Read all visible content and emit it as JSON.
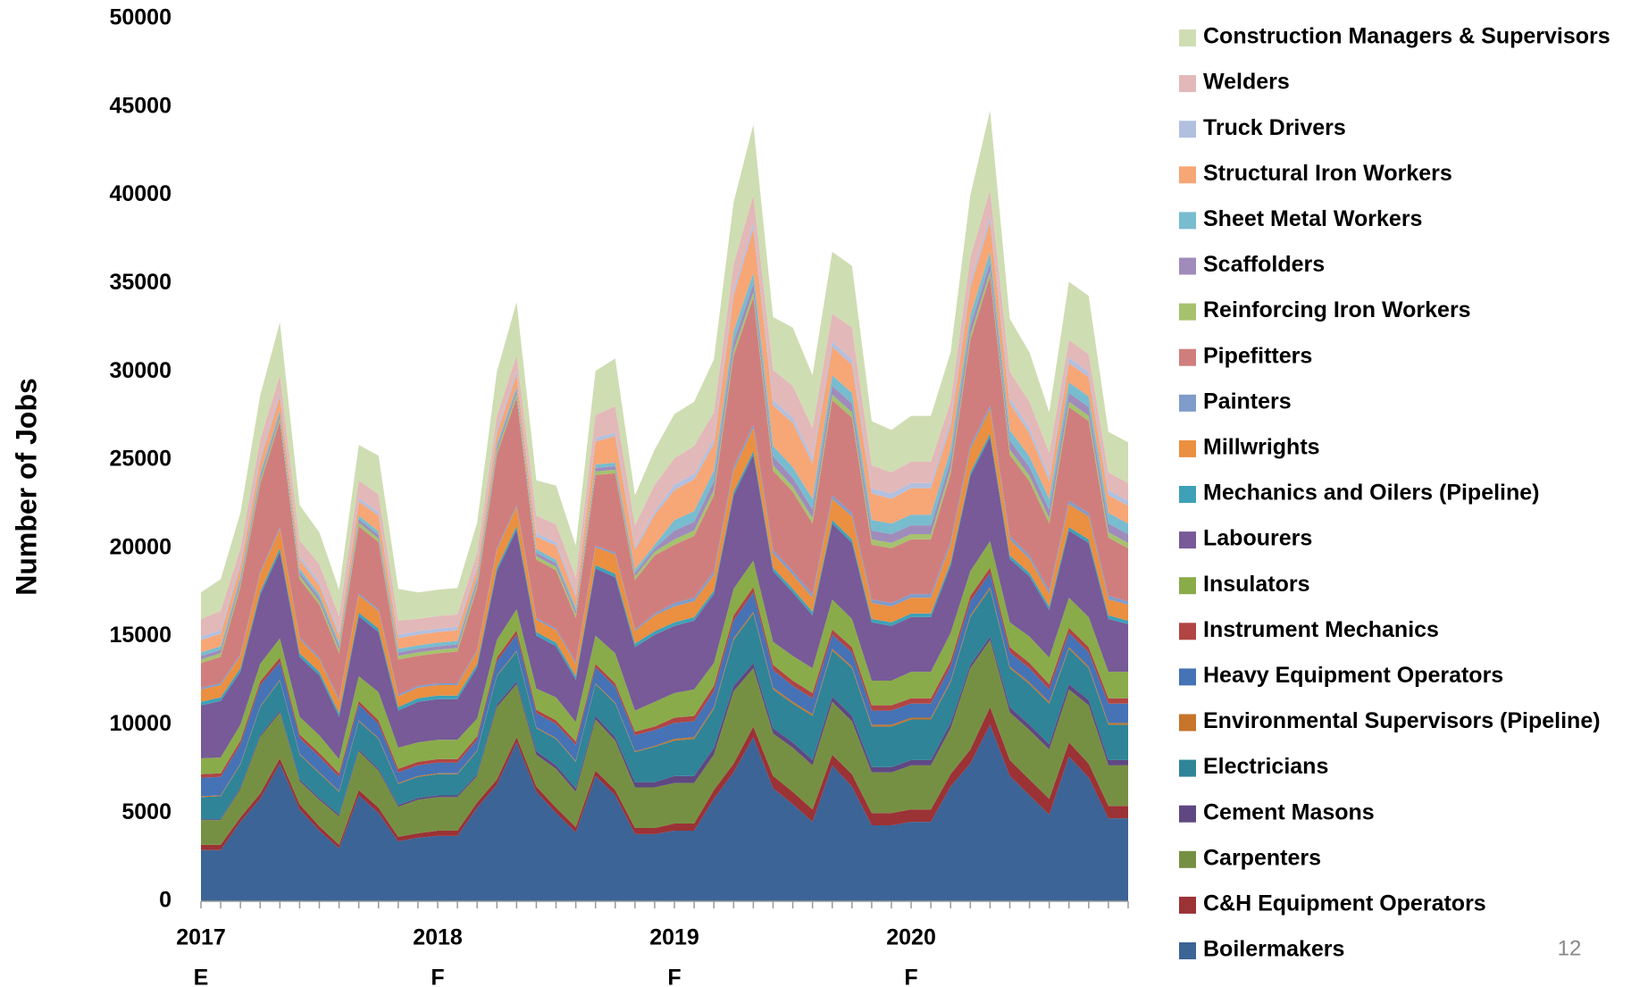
{
  "chart_data": {
    "type": "area",
    "stacked": true,
    "y_label": "Number of Jobs",
    "page_number": "12",
    "legend_order": "reverse",
    "categories": [
      "2017",
      null,
      null,
      null,
      null,
      null,
      null,
      null,
      null,
      null,
      null,
      null,
      "2018",
      null,
      null,
      null,
      null,
      null,
      null,
      null,
      null,
      null,
      null,
      null,
      "2019",
      null,
      null,
      null,
      null,
      null,
      null,
      null,
      null,
      null,
      null,
      null,
      "2020",
      null,
      null,
      null,
      null,
      null,
      null,
      null,
      null,
      null,
      null,
      null
    ],
    "category_notes": [
      "E",
      null,
      null,
      null,
      null,
      null,
      null,
      null,
      null,
      null,
      null,
      null,
      "F",
      null,
      null,
      null,
      null,
      null,
      null,
      null,
      null,
      null,
      null,
      null,
      "F",
      null,
      null,
      null,
      null,
      null,
      null,
      null,
      null,
      null,
      null,
      null,
      "F",
      null,
      null,
      null,
      null,
      null,
      null,
      null,
      null,
      null,
      null,
      null
    ],
    "ylim": [
      0,
      50000
    ],
    "yticks": [
      0,
      5000,
      10000,
      15000,
      20000,
      25000,
      30000,
      35000,
      40000,
      45000,
      50000
    ],
    "series": [
      {
        "name": "Boilermakers",
        "color": "#3c6496",
        "values": [
          2900,
          2900,
          4500,
          5800,
          7800,
          5200,
          4000,
          3000,
          6000,
          5000,
          3400,
          3600,
          3700,
          3700,
          5300,
          6600,
          9000,
          6200,
          5000,
          3900,
          7100,
          6000,
          3800,
          3800,
          4000,
          4000,
          5800,
          7300,
          9300,
          6400,
          5500,
          4500,
          7700,
          6500,
          4300,
          4300,
          4500,
          4500,
          6500,
          7800,
          10000,
          7100,
          6000,
          4900,
          8200,
          7000,
          4700,
          4700
        ]
      },
      {
        "name": "C&H Equipment Operators",
        "color": "#9b3236",
        "values": [
          300,
          300,
          250,
          300,
          300,
          300,
          250,
          200,
          300,
          300,
          250,
          250,
          300,
          300,
          300,
          300,
          300,
          300,
          300,
          300,
          300,
          300,
          350,
          350,
          400,
          400,
          500,
          500,
          600,
          700,
          700,
          700,
          600,
          700,
          700,
          700,
          700,
          700,
          700,
          800,
          1000,
          900,
          900,
          900,
          800,
          800,
          700,
          700
        ]
      },
      {
        "name": "Carpenters",
        "color": "#769043",
        "values": [
          1400,
          1400,
          1600,
          3200,
          2600,
          1300,
          1500,
          1600,
          2200,
          2100,
          1700,
          1900,
          1900,
          1900,
          1500,
          4100,
          3000,
          1800,
          2200,
          2000,
          2900,
          2800,
          2300,
          2300,
          2300,
          2300,
          2000,
          4100,
          3300,
          2400,
          2500,
          2500,
          3000,
          3000,
          2300,
          2300,
          2500,
          2500,
          2600,
          4600,
          3800,
          2700,
          2800,
          2800,
          3000,
          3300,
          2300,
          2300
        ]
      },
      {
        "name": "Cement Masons",
        "color": "#5f4882",
        "values": [
          50,
          50,
          100,
          100,
          100,
          100,
          100,
          100,
          100,
          100,
          100,
          100,
          100,
          100,
          100,
          150,
          150,
          200,
          200,
          200,
          200,
          200,
          300,
          300,
          400,
          400,
          400,
          300,
          300,
          300,
          300,
          300,
          300,
          300,
          300,
          300,
          300,
          300,
          300,
          200,
          200,
          300,
          300,
          300,
          300,
          300,
          300,
          300
        ]
      },
      {
        "name": "Electricians",
        "color": "#2f8497",
        "values": [
          1250,
          1300,
          1300,
          1600,
          1700,
          1400,
          1400,
          1300,
          1600,
          1700,
          1200,
          1200,
          1200,
          1200,
          1300,
          1600,
          1700,
          1300,
          1500,
          1500,
          1800,
          1900,
          1700,
          2000,
          2000,
          2100,
          2200,
          2600,
          2800,
          2200,
          2200,
          2500,
          2600,
          2700,
          2300,
          2300,
          2300,
          2300,
          2300,
          2700,
          2700,
          2200,
          2300,
          2300,
          2000,
          1800,
          2000,
          2000
        ]
      },
      {
        "name": "Environmental Supervisors (Pipeline)",
        "color": "#c6752b",
        "values": [
          50,
          50,
          50,
          50,
          50,
          50,
          50,
          50,
          50,
          50,
          50,
          50,
          50,
          50,
          50,
          50,
          50,
          50,
          50,
          50,
          50,
          50,
          50,
          50,
          100,
          100,
          100,
          100,
          100,
          100,
          100,
          100,
          100,
          100,
          100,
          100,
          100,
          100,
          100,
          100,
          100,
          100,
          100,
          100,
          100,
          100,
          100,
          100
        ]
      },
      {
        "name": "Heavy Equipment Operators",
        "color": "#4573b5",
        "values": [
          1050,
          1050,
          1100,
          1200,
          1000,
          900,
          900,
          800,
          900,
          800,
          600,
          600,
          600,
          600,
          600,
          800,
          900,
          800,
          800,
          900,
          900,
          900,
          900,
          900,
          900,
          900,
          900,
          1000,
          1100,
          1000,
          900,
          900,
          800,
          800,
          800,
          800,
          800,
          800,
          800,
          800,
          800,
          800,
          800,
          700,
          800,
          800,
          1100,
          1100
        ]
      },
      {
        "name": "Instrument Mechanics",
        "color": "#b04544",
        "values": [
          200,
          200,
          200,
          200,
          250,
          200,
          200,
          200,
          200,
          200,
          200,
          200,
          200,
          200,
          200,
          200,
          250,
          200,
          200,
          200,
          200,
          200,
          200,
          200,
          300,
          300,
          300,
          300,
          300,
          300,
          300,
          300,
          300,
          300,
          300,
          300,
          300,
          300,
          300,
          300,
          300,
          300,
          300,
          300,
          300,
          300,
          300,
          300
        ]
      },
      {
        "name": "Insulators",
        "color": "#8aab4a",
        "values": [
          900,
          900,
          900,
          1000,
          1100,
          1000,
          1000,
          800,
          1400,
          1600,
          1200,
          1100,
          1100,
          1100,
          1000,
          1000,
          1200,
          1200,
          1300,
          1100,
          1600,
          1700,
          1200,
          1400,
          1400,
          1500,
          1300,
          1500,
          1500,
          1300,
          1400,
          1400,
          1700,
          1600,
          1400,
          1400,
          1500,
          1500,
          1600,
          1400,
          1500,
          1400,
          1500,
          1500,
          1700,
          1700,
          1500,
          1500
        ]
      },
      {
        "name": "Labourers",
        "color": "#775a97",
        "values": [
          3000,
          3200,
          3000,
          3900,
          4900,
          3400,
          3400,
          2400,
          3400,
          3400,
          2100,
          2300,
          2300,
          2300,
          2900,
          3900,
          4500,
          3000,
          2900,
          2400,
          3800,
          4300,
          3600,
          3800,
          3800,
          3900,
          3900,
          5300,
          6000,
          4000,
          3600,
          3000,
          4300,
          4300,
          3300,
          3100,
          3100,
          3100,
          3800,
          5400,
          5900,
          3600,
          3400,
          2700,
          3800,
          4200,
          3000,
          2700
        ]
      },
      {
        "name": "Mechanics and Oilers (Pipeline)",
        "color": "#3ea1b8",
        "values": [
          200,
          200,
          200,
          200,
          200,
          200,
          200,
          200,
          200,
          200,
          200,
          200,
          200,
          200,
          200,
          200,
          200,
          200,
          200,
          200,
          200,
          200,
          200,
          200,
          200,
          200,
          200,
          200,
          200,
          200,
          200,
          200,
          200,
          200,
          200,
          200,
          200,
          200,
          200,
          200,
          200,
          200,
          200,
          200,
          200,
          200,
          200,
          200
        ]
      },
      {
        "name": "Millwrights",
        "color": "#eb8f40",
        "values": [
          700,
          700,
          700,
          1000,
          1100,
          800,
          700,
          700,
          1000,
          1000,
          600,
          600,
          600,
          600,
          700,
          1000,
          1100,
          700,
          700,
          700,
          1000,
          1100,
          700,
          900,
          900,
          900,
          900,
          1200,
          1300,
          800,
          800,
          800,
          1200,
          1300,
          900,
          900,
          900,
          900,
          1000,
          1300,
          1400,
          900,
          800,
          700,
          1300,
          1300,
          900,
          900
        ]
      },
      {
        "name": "Painters",
        "color": "#7f9cca",
        "values": [
          100,
          100,
          100,
          100,
          100,
          100,
          100,
          100,
          100,
          100,
          100,
          100,
          100,
          100,
          100,
          100,
          100,
          100,
          100,
          100,
          100,
          100,
          100,
          100,
          200,
          200,
          200,
          200,
          200,
          200,
          200,
          200,
          200,
          200,
          200,
          200,
          200,
          200,
          200,
          200,
          200,
          200,
          200,
          200,
          200,
          200,
          200,
          200
        ]
      },
      {
        "name": "Pipefitters",
        "color": "#cf7e7d",
        "values": [
          1400,
          1500,
          3800,
          5000,
          6000,
          3300,
          3000,
          2600,
          3800,
          3800,
          2000,
          1700,
          1700,
          1800,
          3500,
          5300,
          6100,
          3300,
          3300,
          2500,
          4000,
          4500,
          2800,
          3300,
          3300,
          3500,
          4300,
          6300,
          7200,
          4500,
          4500,
          4000,
          5400,
          5400,
          3100,
          3100,
          3100,
          3100,
          3800,
          6000,
          7300,
          4600,
          4200,
          3800,
          5300,
          5200,
          3300,
          3000
        ]
      },
      {
        "name": "Reinforcing Iron Workers",
        "color": "#a6c26e",
        "values": [
          200,
          200,
          200,
          200,
          200,
          200,
          200,
          200,
          200,
          200,
          200,
          200,
          200,
          200,
          200,
          200,
          200,
          200,
          200,
          200,
          200,
          200,
          200,
          200,
          300,
          300,
          300,
          300,
          300,
          300,
          300,
          300,
          300,
          300,
          300,
          300,
          300,
          300,
          300,
          300,
          300,
          300,
          300,
          300,
          300,
          300,
          300,
          300
        ]
      },
      {
        "name": "Scaffolders",
        "color": "#9f8cbb",
        "values": [
          200,
          200,
          200,
          200,
          200,
          200,
          200,
          200,
          200,
          200,
          200,
          200,
          200,
          200,
          200,
          200,
          200,
          200,
          200,
          200,
          200,
          200,
          200,
          200,
          500,
          500,
          500,
          500,
          500,
          500,
          500,
          500,
          500,
          500,
          500,
          500,
          500,
          500,
          500,
          500,
          500,
          500,
          500,
          500,
          500,
          500,
          500,
          500
        ]
      },
      {
        "name": "Sheet Metal Workers",
        "color": "#78bccf",
        "values": [
          200,
          200,
          200,
          200,
          200,
          200,
          200,
          200,
          200,
          200,
          200,
          200,
          200,
          200,
          200,
          200,
          200,
          200,
          200,
          200,
          200,
          200,
          200,
          200,
          600,
          600,
          600,
          600,
          600,
          600,
          600,
          600,
          600,
          600,
          600,
          600,
          600,
          600,
          600,
          600,
          600,
          600,
          600,
          600,
          600,
          600,
          600,
          600
        ]
      },
      {
        "name": "Structural Iron Workers",
        "color": "#f7a676",
        "values": [
          700,
          700,
          600,
          700,
          800,
          500,
          500,
          400,
          800,
          900,
          600,
          600,
          600,
          600,
          500,
          600,
          700,
          700,
          800,
          600,
          1300,
          1500,
          1100,
          1700,
          1700,
          1800,
          1500,
          2000,
          2500,
          2300,
          2500,
          2000,
          1600,
          1600,
          1500,
          1400,
          1500,
          1500,
          1300,
          1600,
          1700,
          1500,
          1300,
          1000,
          1100,
          1100,
          1000,
          1000
        ]
      },
      {
        "name": "Truck Drivers",
        "color": "#b2c0df",
        "values": [
          200,
          200,
          200,
          200,
          200,
          200,
          200,
          200,
          200,
          200,
          200,
          200,
          200,
          200,
          200,
          200,
          200,
          200,
          200,
          200,
          200,
          200,
          200,
          200,
          300,
          300,
          300,
          300,
          300,
          300,
          300,
          300,
          300,
          300,
          300,
          300,
          300,
          300,
          300,
          300,
          300,
          300,
          300,
          300,
          300,
          300,
          300,
          300
        ]
      },
      {
        "name": "Welders",
        "color": "#e3b8b8",
        "values": [
          1000,
          1100,
          800,
          1000,
          1000,
          900,
          1000,
          900,
          1000,
          1000,
          800,
          700,
          700,
          700,
          700,
          800,
          900,
          1000,
          1000,
          900,
          1300,
          1500,
          1200,
          1500,
          1500,
          1600,
          1500,
          1500,
          1600,
          1700,
          1800,
          1700,
          1600,
          1800,
          1300,
          1200,
          1200,
          1200,
          1100,
          1400,
          1500,
          1500,
          1500,
          1300,
          1000,
          1000,
          1000,
          1000
        ]
      },
      {
        "name": "Construction Managers & Supervisors",
        "color": "#cfddb3",
        "values": [
          1500,
          1800,
          2000,
          2500,
          3000,
          2000,
          1800,
          1500,
          2000,
          2200,
          1800,
          1500,
          1500,
          1500,
          1700,
          2500,
          3000,
          2000,
          2200,
          1800,
          2500,
          2700,
          1700,
          2000,
          2500,
          2500,
          3000,
          3500,
          4000,
          3000,
          3300,
          3000,
          3500,
          3500,
          2500,
          2400,
          2600,
          2600,
          2800,
          3500,
          4500,
          3000,
          2800,
          2300,
          3300,
          3300,
          2300,
          2300
        ]
      }
    ]
  }
}
